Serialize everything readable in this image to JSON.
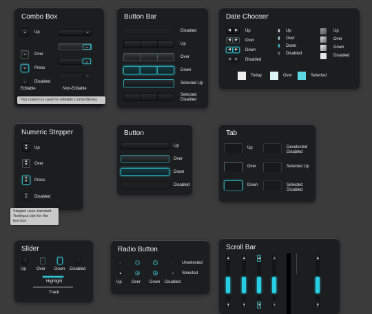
{
  "colors": {
    "background": "#3b3b3b",
    "panel": "#1c1d1f",
    "accent": "#2fc3d3",
    "today": "#eeeeee",
    "over": "#ddf3f6",
    "selected": "#5fd6e3"
  },
  "combo_box": {
    "title": "Combo Box",
    "rows": [
      "Up",
      "Over",
      "Press",
      "Disabled"
    ],
    "editable_label": "Editable",
    "noneditable_label": "Non-Editable",
    "tooltip": "This column is used for editable ComboBoxes",
    "arrow_icon": "chevron-down-icon"
  },
  "button_bar": {
    "title": "Button Bar",
    "rows": [
      "Disabled",
      "Up",
      "Over",
      "Down",
      "Selected Up",
      "Selected Disabled"
    ]
  },
  "date_chooser": {
    "title": "Date Chooser",
    "col1": [
      "Up",
      "Over",
      "Down",
      "Disabled"
    ],
    "col2": [
      "Up",
      "Over",
      "Down",
      "Disabled"
    ],
    "col3": [
      "Up",
      "Over",
      "Down",
      "Disabled"
    ],
    "legend": [
      {
        "label": "Today"
      },
      {
        "label": "Over"
      },
      {
        "label": "Selected"
      }
    ]
  },
  "numeric_stepper": {
    "title": "Numeric Stepper",
    "rows": [
      "Up",
      "Over",
      "Press",
      "Disabled"
    ],
    "tooltip_lines": [
      "Stepper uses standard",
      "TextInput skin for the",
      "text box"
    ]
  },
  "button": {
    "title": "Button",
    "rows": [
      "Up",
      "Over",
      "Down",
      "Disabled"
    ]
  },
  "tab": {
    "title": "Tab",
    "left": [
      "Up",
      "Over",
      "Down"
    ],
    "right": [
      [
        "Deselected",
        "Disabled"
      ],
      [
        "Selected Up"
      ],
      [
        "Selected",
        "Disabled"
      ]
    ]
  },
  "slider": {
    "title": "Slider",
    "states": [
      "Up",
      "Over",
      "Down",
      "Disabled"
    ],
    "highlight_label": "Highlight",
    "track_label": "Track"
  },
  "radio_button": {
    "title": "Radio Button",
    "row_labels": [
      "Unselected",
      "Selected"
    ],
    "states": [
      "Up",
      "Over",
      "Down",
      "Disabled"
    ]
  },
  "scroll_bar": {
    "title": "Scroll Bar"
  }
}
